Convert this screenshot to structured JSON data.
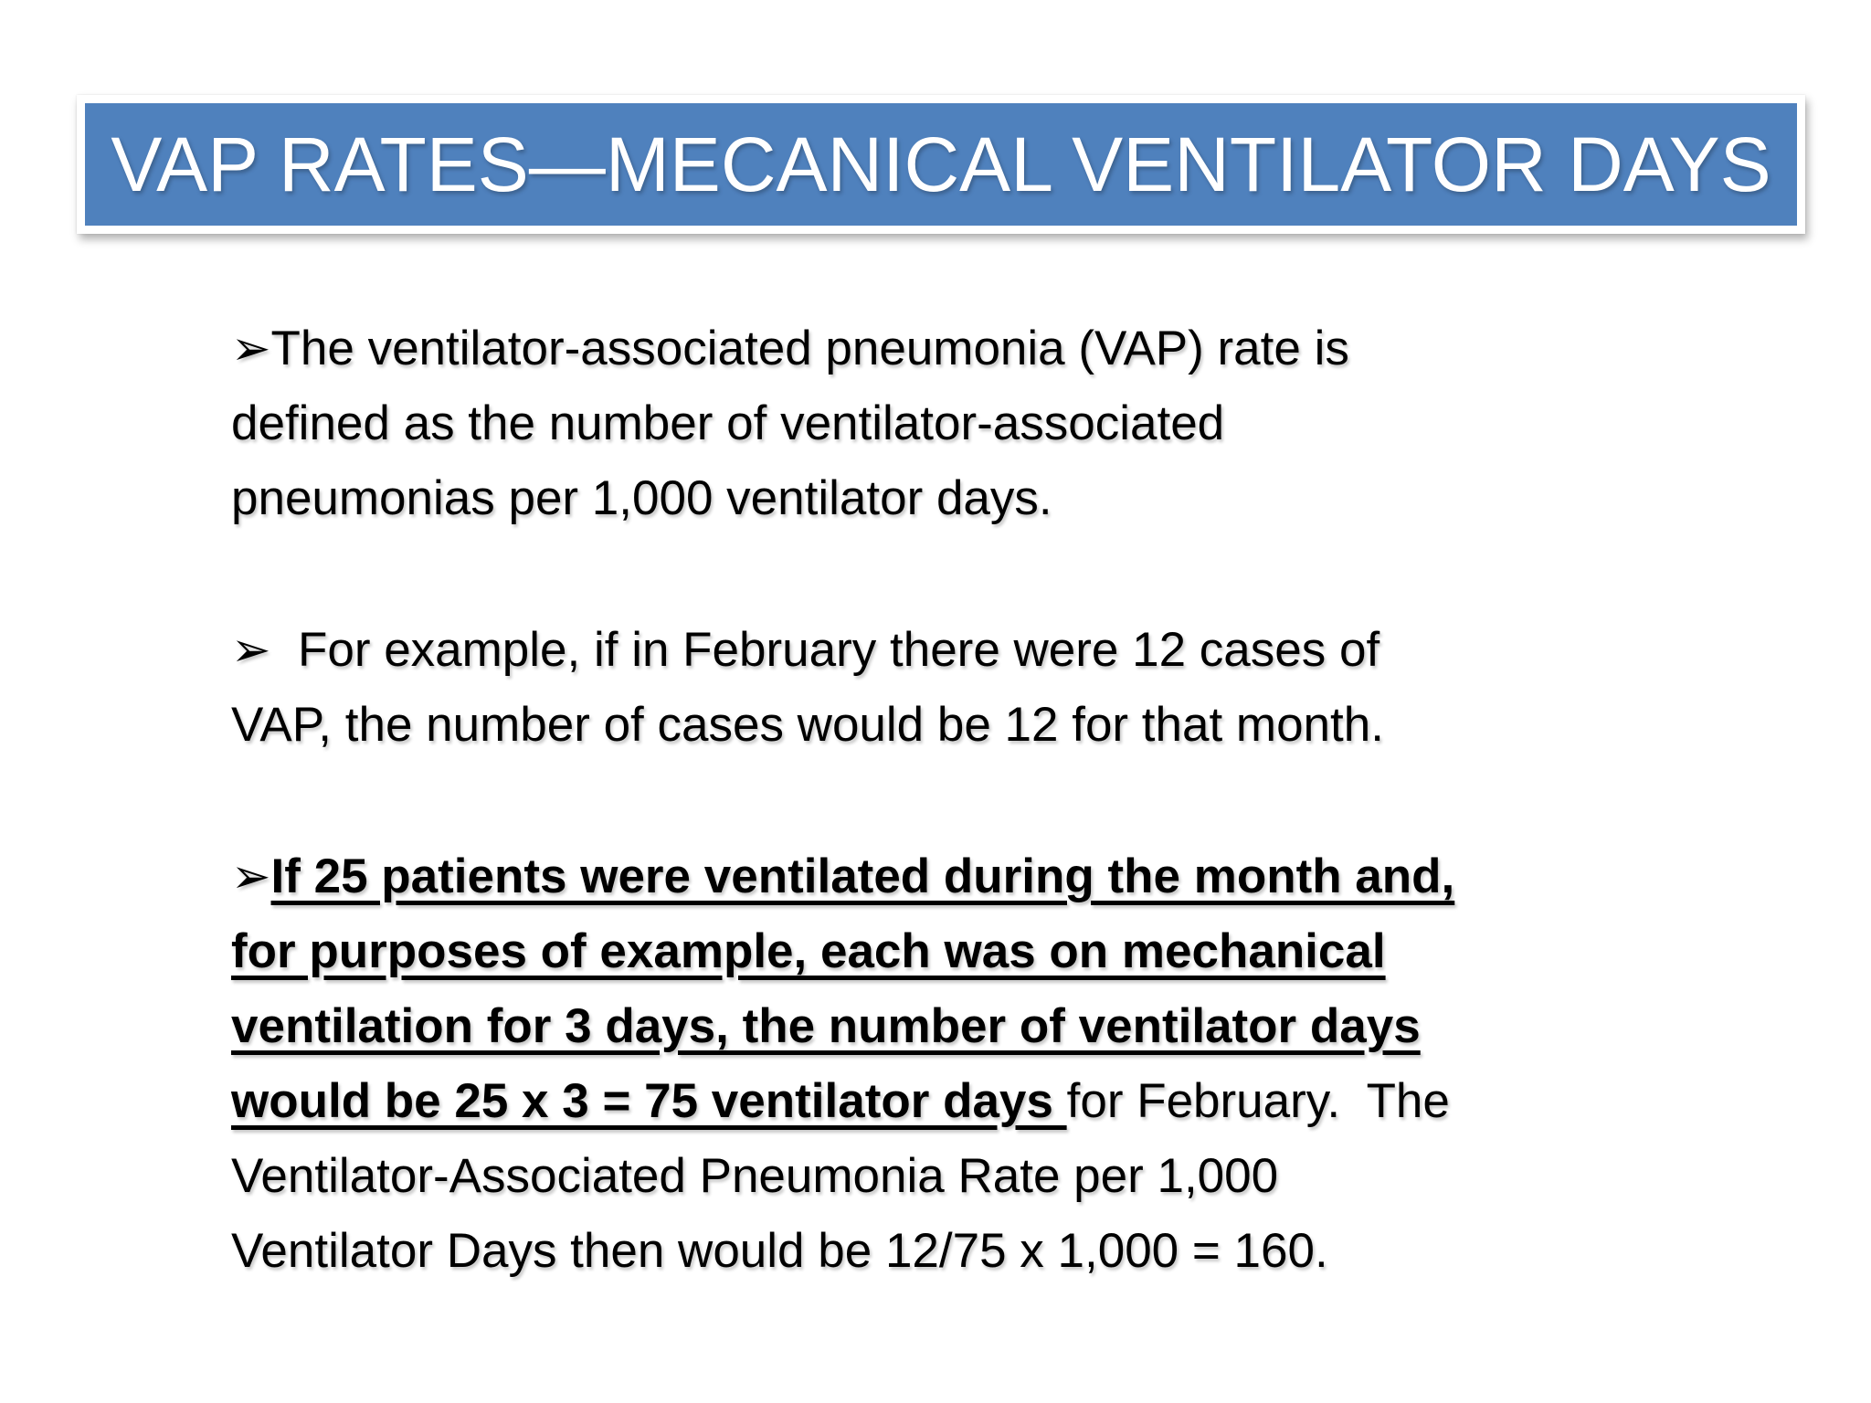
{
  "slide": {
    "background_color": "#ffffff",
    "title_bar": {
      "text": "VAP RATES—MECANICAL VENTILATOR DAYS",
      "fill_color": "#4f81bd",
      "border_color": "#ffffff",
      "text_color": "#ffffff"
    },
    "bullets": [
      {
        "marker": "➢",
        "text": "The ventilator-associated pneumonia (VAP) rate is\ndefined as the number of ventilator-associated\npneumonias per 1,000 ventilator days."
      },
      {
        "marker": "➢",
        "text": "  For example, if in February there were 12 cases of\nVAP, the number of cases would be 12 for that month."
      },
      {
        "marker": "➢",
        "bold_underlined_text": "If 25 patients were ventilated during the month and,\nfor purposes of example, each was on mechanical\nventilation for 3 days, the number of ventilator days\nwould be 25 x 3 = 75 ventilator days ",
        "text": "for February.  The\nVentilator-Associated Pneumonia Rate per 1,000\nVentilator Days then would be 12/75 x 1,000 = 160."
      }
    ]
  }
}
